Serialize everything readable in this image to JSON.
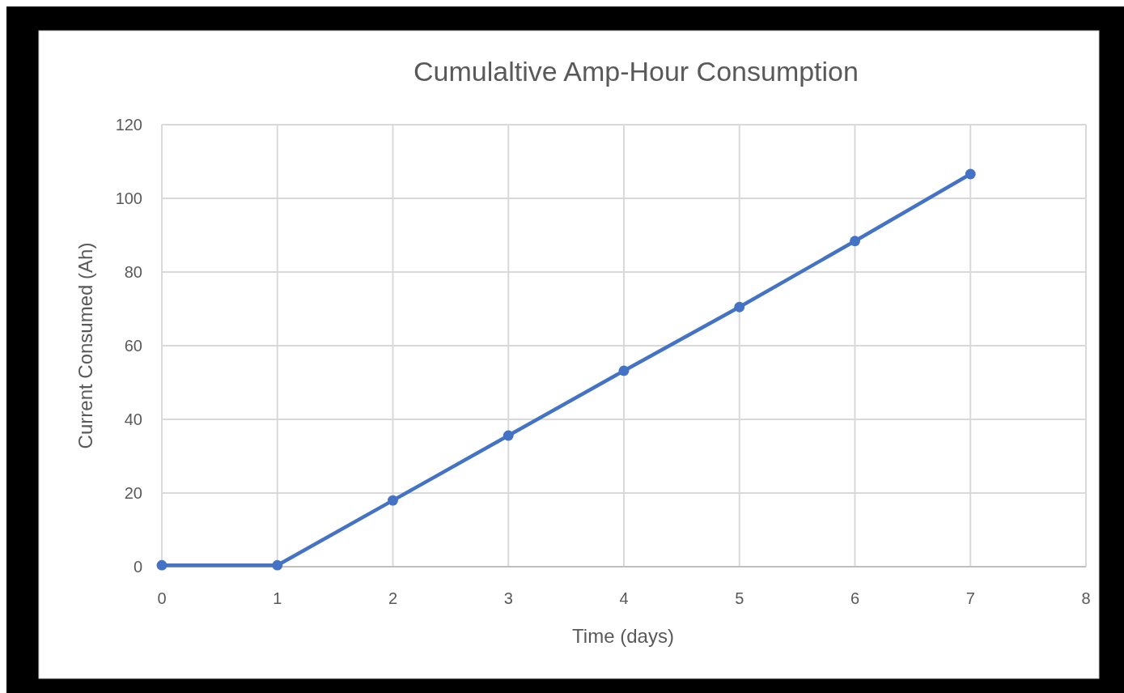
{
  "chart_data": {
    "type": "line",
    "title": "Cumulaltive Amp-Hour Consumption",
    "xlabel": "Time (days)",
    "ylabel": "Current Consumed (Ah)",
    "x": [
      0,
      1,
      2,
      3,
      4,
      5,
      6,
      7
    ],
    "series": [
      {
        "color": "#4472c4",
        "values": [
          0.4,
          0.4,
          18,
          35.6,
          53.2,
          70.5,
          88.4,
          106.6
        ]
      }
    ],
    "xlim": [
      0,
      8
    ],
    "xticks": [
      0,
      1,
      2,
      3,
      4,
      5,
      6,
      7,
      8
    ],
    "ylim": [
      0,
      120
    ],
    "yticks": [
      0,
      20,
      40,
      60,
      80,
      100,
      120
    ],
    "grid": true,
    "marker": "circle",
    "line_style": "solid"
  }
}
